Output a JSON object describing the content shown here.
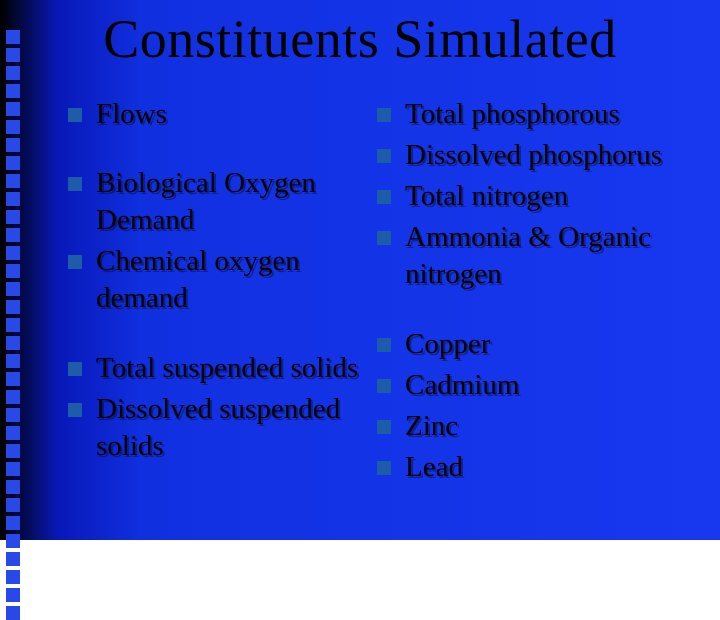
{
  "slide": {
    "title": "Constituents Simulated",
    "background_gradient": [
      "#000000",
      "#0818b8",
      "#1030e0",
      "#1838f0"
    ],
    "bullet_color": "#1e5ba8",
    "text_color": "#000000",
    "title_fontsize": 54,
    "item_fontsize": 29,
    "decor_sq_color": "#2848e8",
    "decor_sq_count": 33
  },
  "left": {
    "g1": {
      "i0": "Flows"
    },
    "g2": {
      "i0": "Biological Oxygen Demand",
      "i1": "Chemical oxygen demand"
    },
    "g3": {
      "i0": "Total suspended solids",
      "i1": "Dissolved suspended solids"
    }
  },
  "right": {
    "g1": {
      "i0": "Total phosphorous",
      "i1": "Dissolved phosphorus",
      "i2": "Total nitrogen",
      "i3": "Ammonia & Organic nitrogen"
    },
    "g2": {
      "i0": "Copper",
      "i1": "Cadmium",
      "i2": "Zinc",
      "i3": "Lead"
    }
  }
}
